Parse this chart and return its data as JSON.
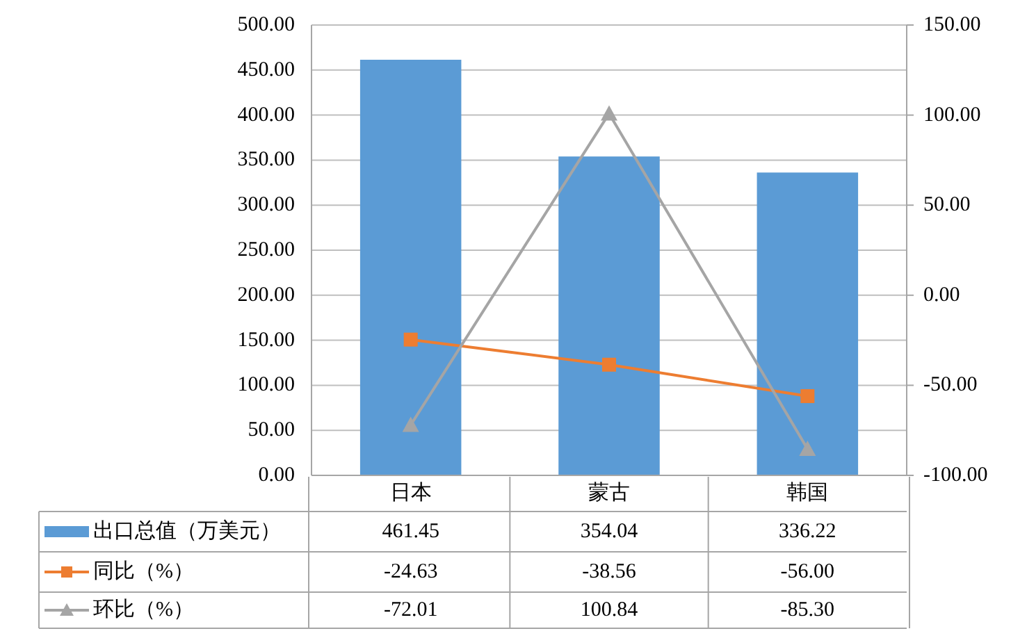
{
  "chart_data": {
    "type": "bar",
    "categories": [
      "日本",
      "蒙古",
      "韩国"
    ],
    "series": [
      {
        "name": "出口总值（万美元）",
        "color": "#5b9bd5",
        "values": [
          461.45,
          354.04,
          336.22
        ],
        "value_labels": [
          "461.45",
          "354.04",
          "336.22"
        ]
      },
      {
        "name": "同比（%）",
        "type": "line",
        "axis": "y2",
        "marker": "square",
        "color": "#ed7d31",
        "values": [
          -24.63,
          -38.56,
          -56.0
        ],
        "value_labels": [
          "-24.63",
          "-38.56",
          "-56.00"
        ]
      },
      {
        "name": "环比（%）",
        "type": "line",
        "axis": "y2",
        "marker": "triangle",
        "color": "#a5a5a5",
        "values": [
          -72.01,
          100.84,
          -85.3
        ],
        "value_labels": [
          "-72.01",
          "100.84",
          "-85.30"
        ]
      }
    ],
    "ylim": [
      0,
      500
    ],
    "yticks": [
      {
        "value": 0,
        "label": "0.00"
      },
      {
        "value": 50,
        "label": "50.00"
      },
      {
        "value": 100,
        "label": "100.00"
      },
      {
        "value": 150,
        "label": "150.00"
      },
      {
        "value": 200,
        "label": "200.00"
      },
      {
        "value": 250,
        "label": "250.00"
      },
      {
        "value": 300,
        "label": "300.00"
      },
      {
        "value": 350,
        "label": "350.00"
      },
      {
        "value": 400,
        "label": "400.00"
      },
      {
        "value": 450,
        "label": "450.00"
      },
      {
        "value": 500,
        "label": "500.00"
      }
    ],
    "y2lim": [
      -100,
      150
    ],
    "y2ticks": [
      {
        "value": -100,
        "label": "-100.00"
      },
      {
        "value": -50,
        "label": "-50.00"
      },
      {
        "value": 0,
        "label": "0.00"
      },
      {
        "value": 50,
        "label": "50.00"
      },
      {
        "value": 100,
        "label": "100.00"
      },
      {
        "value": 150,
        "label": "150.00"
      }
    ],
    "grid": "y",
    "legend": "bottom"
  }
}
